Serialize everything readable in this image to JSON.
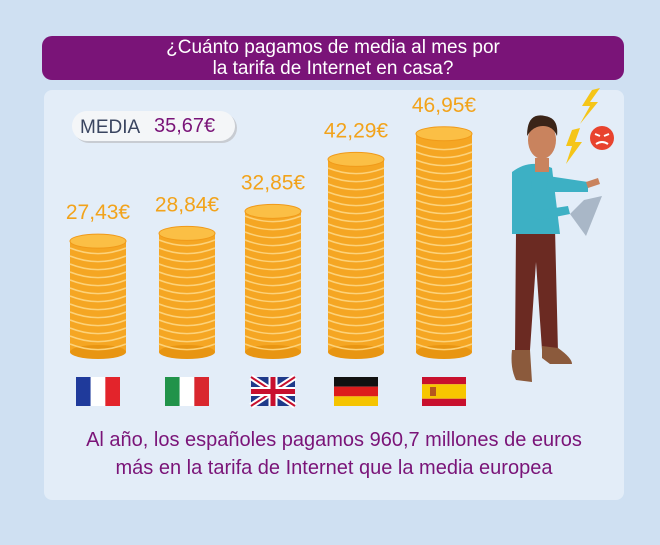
{
  "title": {
    "line1": "¿Cuánto pagamos de media al mes por",
    "line2": "la tarifa de Internet en casa?"
  },
  "media": {
    "label": "MEDIA",
    "value": "35,67€"
  },
  "chart_data": {
    "type": "bar",
    "categories": [
      "Francia",
      "Italia",
      "Reino Unido",
      "Alemania",
      "España"
    ],
    "values": [
      27.43,
      28.84,
      32.85,
      42.29,
      46.95
    ],
    "value_labels": [
      "27,43€",
      "28,84€",
      "32,85€",
      "42,29€",
      "46,95€"
    ],
    "unit": "€",
    "category_markers": [
      "flag-france",
      "flag-italy",
      "flag-uk",
      "flag-germany",
      "flag-spain"
    ],
    "bar_style": "coin stacks",
    "bar_color": "#f5a623",
    "label_color": "#f2a31b"
  },
  "footer": {
    "line1": "Al año, los españoles pagamos 960,7 millones de euros",
    "line2": "más en la tarifa de Internet que la media europea"
  },
  "colors": {
    "primary": "#7a1478",
    "background": "#cfe0f2",
    "panel": "#e3edf8"
  }
}
